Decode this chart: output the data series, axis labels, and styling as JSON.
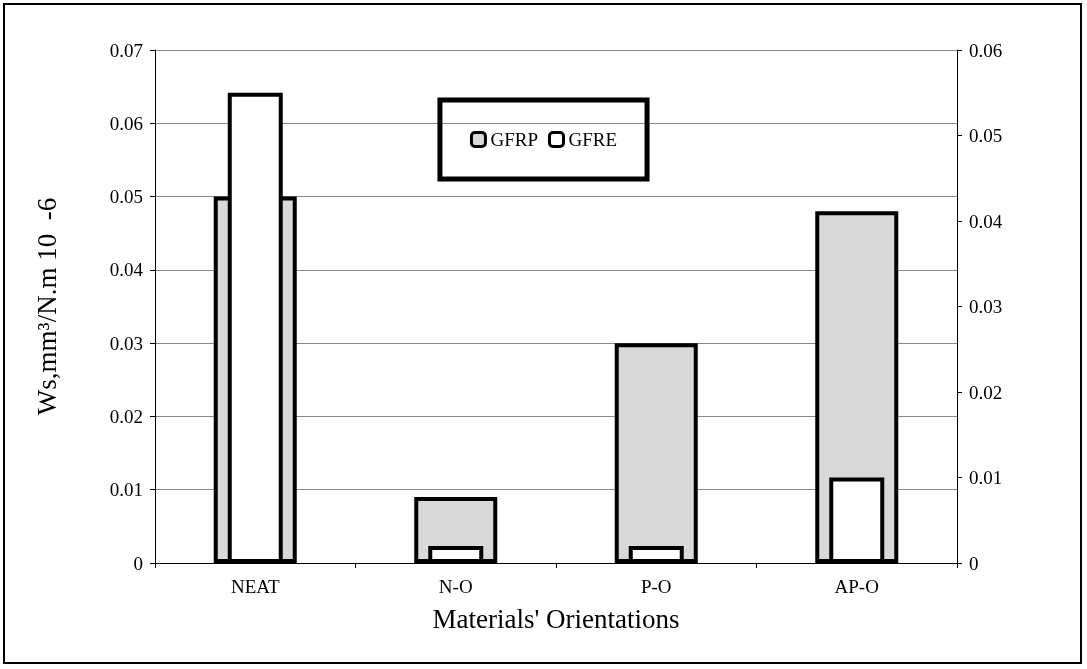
{
  "chart_data": {
    "type": "bar",
    "xlabel": "Materials' Orientations",
    "ylabel": "Ws,mm³/N.m 10  -6",
    "categories": [
      "NEAT",
      "N-O",
      "P-O",
      "AP-O"
    ],
    "series": [
      {
        "name": "GFRP",
        "color": "#d9d9d9",
        "values": [
          0.05,
          0.009,
          0.03,
          0.048
        ]
      },
      {
        "name": "GFRE",
        "color": "#ffffff",
        "axis": "y2",
        "values": [
          0.055,
          0.002,
          0.002,
          0.01
        ]
      }
    ],
    "ylim": [
      0,
      0.07
    ],
    "yticks": [
      0,
      0.01,
      0.02,
      0.03,
      0.04,
      0.05,
      0.06,
      0.07
    ],
    "y2lim": [
      0,
      0.06
    ],
    "y2ticks": [
      0,
      0.01,
      0.02,
      0.03,
      0.04,
      0.05,
      0.06
    ],
    "grid": "y",
    "legend": "top"
  }
}
